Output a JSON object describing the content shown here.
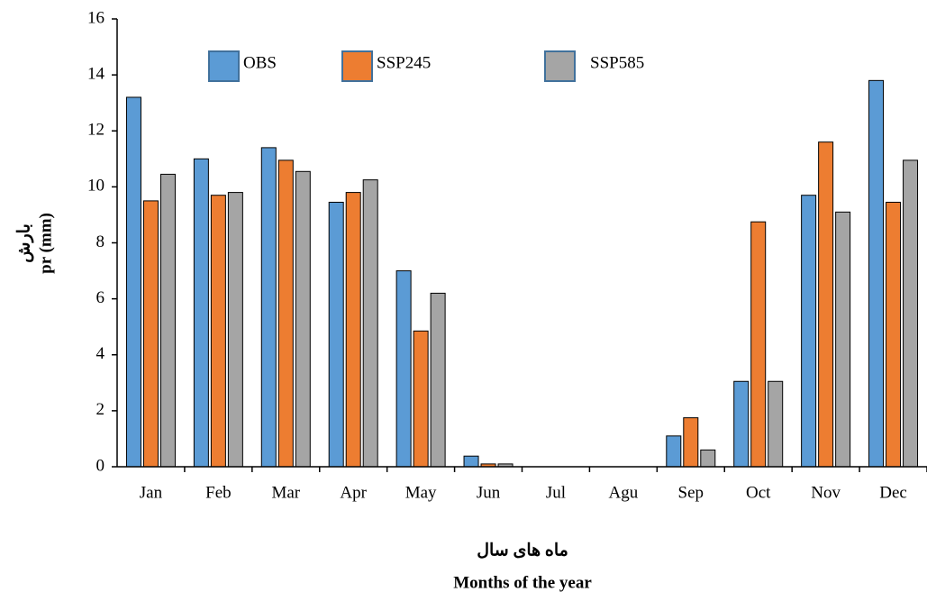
{
  "chart_data": {
    "type": "bar",
    "y_label": [
      "بارش",
      "pr (mm)"
    ],
    "x_label": [
      "ماه های سال",
      "Months of the year"
    ],
    "categories": [
      "Jan",
      "Feb",
      "Mar",
      "Apr",
      "May",
      "Jun",
      "Jul",
      "Agu",
      "Sep",
      "Oct",
      "Nov",
      "Dec"
    ],
    "series": [
      {
        "name": "OBS",
        "color": "#5b9bd5",
        "values": [
          13.2,
          11.0,
          11.4,
          9.45,
          7.0,
          0.38,
          0,
          0,
          1.1,
          3.05,
          9.7,
          13.8
        ]
      },
      {
        "name": "SSP245",
        "color": "#ed7d31",
        "values": [
          9.5,
          9.7,
          10.95,
          9.8,
          4.85,
          0.1,
          0,
          0,
          1.75,
          8.75,
          11.6,
          9.45
        ]
      },
      {
        "name": "SSP585",
        "color": "#a5a5a5",
        "values": [
          10.45,
          9.8,
          10.55,
          10.25,
          6.2,
          0.1,
          0,
          0,
          0.6,
          3.05,
          9.1,
          10.95
        ]
      }
    ],
    "ylim": [
      0,
      16
    ],
    "yticks": [
      0,
      2,
      4,
      6,
      8,
      10,
      12,
      14,
      16
    ],
    "legend": "top-left"
  }
}
